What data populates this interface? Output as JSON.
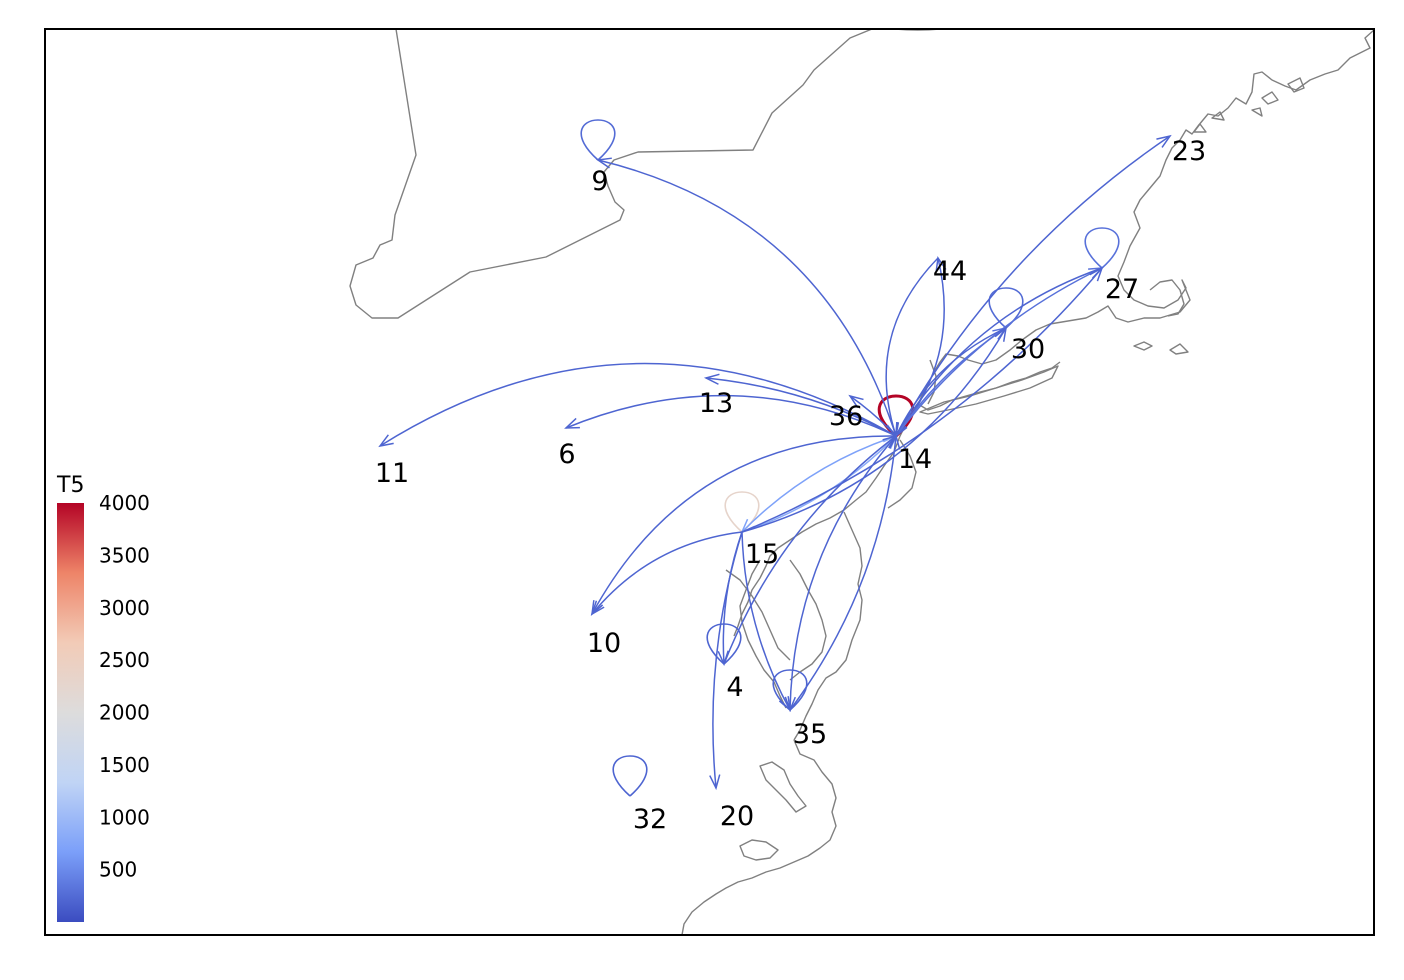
{
  "colorbar": {
    "title": "T5",
    "min": 0,
    "max": 4000,
    "ticks": [
      "500",
      "1000",
      "1500",
      "2000",
      "2500",
      "3000",
      "3500",
      "4000"
    ],
    "colors": [
      "#3b4cc0",
      "#7b9ff9",
      "#c0d4f5",
      "#dddcdc",
      "#f2cbb7",
      "#ee8468",
      "#b40426"
    ]
  },
  "nodes": [
    {
      "id": "9",
      "label": "9"
    },
    {
      "id": "44",
      "label": "44"
    },
    {
      "id": "23",
      "label": "23"
    },
    {
      "id": "27",
      "label": "27"
    },
    {
      "id": "30",
      "label": "30"
    },
    {
      "id": "13",
      "label": "13"
    },
    {
      "id": "36",
      "label": "36"
    },
    {
      "id": "14",
      "label": "14"
    },
    {
      "id": "6",
      "label": "6"
    },
    {
      "id": "11",
      "label": "11"
    },
    {
      "id": "15",
      "label": "15"
    },
    {
      "id": "10",
      "label": "10"
    },
    {
      "id": "4",
      "label": "4"
    },
    {
      "id": "35",
      "label": "35"
    },
    {
      "id": "32",
      "label": "32"
    },
    {
      "id": "20",
      "label": "20"
    }
  ],
  "self_loops": [
    {
      "node": "14",
      "value": 4000
    },
    {
      "node": "15",
      "value": 2300
    },
    {
      "node": "9",
      "value": 250
    },
    {
      "node": "27",
      "value": 300
    },
    {
      "node": "30",
      "value": 250
    },
    {
      "node": "4",
      "value": 200
    },
    {
      "node": "35",
      "value": 200
    },
    {
      "node": "32",
      "value": 200
    }
  ],
  "edges": [
    {
      "from": "14",
      "to": "9",
      "value": 200
    },
    {
      "from": "14",
      "to": "44",
      "value": 200
    },
    {
      "from": "44",
      "to": "14",
      "value": 200
    },
    {
      "from": "14",
      "to": "23",
      "value": 200
    },
    {
      "from": "14",
      "to": "27",
      "value": 300
    },
    {
      "from": "27",
      "to": "14",
      "value": 200
    },
    {
      "from": "14",
      "to": "30",
      "value": 300
    },
    {
      "from": "30",
      "to": "14",
      "value": 200
    },
    {
      "from": "14",
      "to": "13",
      "value": 200
    },
    {
      "from": "14",
      "to": "36",
      "value": 200
    },
    {
      "from": "14",
      "to": "6",
      "value": 200
    },
    {
      "from": "14",
      "to": "11",
      "value": 200
    },
    {
      "from": "14",
      "to": "15",
      "value": 700
    },
    {
      "from": "15",
      "to": "14",
      "value": 800
    },
    {
      "from": "14",
      "to": "10",
      "value": 200
    },
    {
      "from": "15",
      "to": "10",
      "value": 200
    },
    {
      "from": "14",
      "to": "35",
      "value": 200
    },
    {
      "from": "35",
      "to": "14",
      "value": 200
    },
    {
      "from": "15",
      "to": "35",
      "value": 200
    },
    {
      "from": "15",
      "to": "27",
      "value": 200
    },
    {
      "from": "15",
      "to": "30",
      "value": 200
    },
    {
      "from": "4",
      "to": "14",
      "value": 200
    },
    {
      "from": "15",
      "to": "20",
      "value": 200
    },
    {
      "from": "15",
      "to": "4",
      "value": 200
    }
  ]
}
